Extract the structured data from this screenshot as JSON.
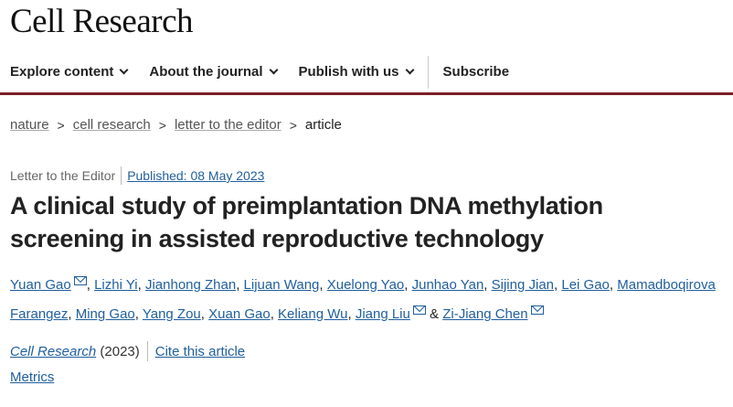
{
  "brand": "Cell Research",
  "nav": [
    "Explore content",
    "About the journal",
    "Publish with us",
    "Subscribe"
  ],
  "breadcrumb": [
    "nature",
    "cell research",
    "letter to the editor",
    "article"
  ],
  "meta": {
    "type": "Letter to the Editor",
    "published": "Published: 08 May 2023"
  },
  "title": "A clinical study of preimplantation DNA methylation screening in assisted reproductive technology",
  "authors": [
    {
      "name": "Yuan Gao",
      "mail": true
    },
    {
      "name": "Lizhi Yi"
    },
    {
      "name": "Jianhong Zhan"
    },
    {
      "name": "Lijuan Wang"
    },
    {
      "name": "Xuelong Yao"
    },
    {
      "name": "Junhao Yan"
    },
    {
      "name": "Sijing Jian"
    },
    {
      "name": "Lei Gao"
    },
    {
      "name": "Mamadboqirova Farangez"
    },
    {
      "name": "Ming Gao"
    },
    {
      "name": "Yang Zou"
    },
    {
      "name": "Xuan Gao"
    },
    {
      "name": "Keliang Wu"
    },
    {
      "name": "Jiang Liu",
      "mail": true
    },
    {
      "name": "Zi-Jiang Chen",
      "mail": true
    }
  ],
  "citation": {
    "journal": "Cell Research",
    "year": "(2023)",
    "cite": "Cite this article"
  },
  "metrics": "Metrics",
  "colors": {
    "link": "#1f5f9e",
    "nav_border": "#7a1f24"
  }
}
